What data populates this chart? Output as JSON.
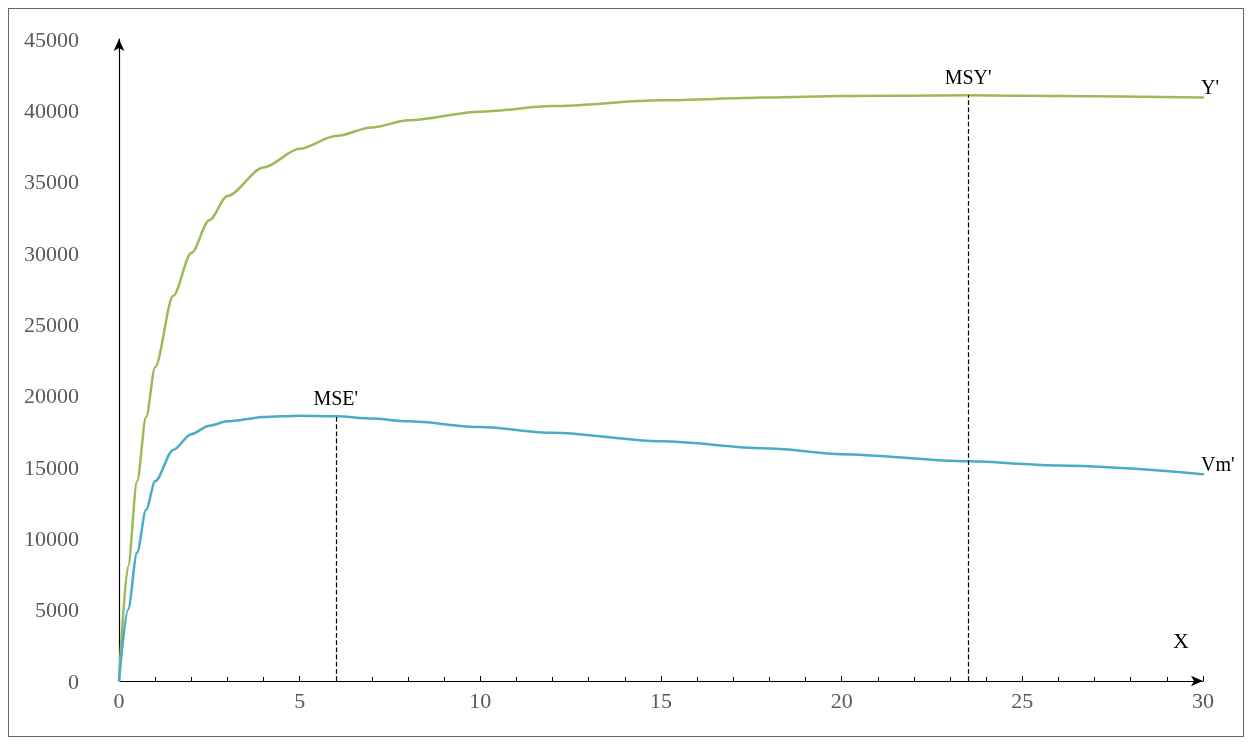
{
  "chart_data": {
    "type": "line",
    "xlabel": "X",
    "xlim": [
      0,
      30
    ],
    "xticks": [
      0,
      5,
      10,
      15,
      20,
      25,
      30
    ],
    "ylim": [
      0,
      45000
    ],
    "yticks": [
      0,
      5000,
      10000,
      15000,
      20000,
      25000,
      30000,
      35000,
      40000,
      45000
    ],
    "grid": false,
    "legend": false,
    "marker": "none",
    "line_style": "solid",
    "series": [
      {
        "name": "Y'",
        "color": "#9bbb59",
        "x": [
          0,
          0.25,
          0.5,
          0.75,
          1,
          1.5,
          2,
          2.5,
          3,
          4,
          5,
          6,
          7,
          8,
          10,
          12,
          15,
          18,
          20,
          23.5,
          26,
          30
        ],
        "values": [
          0,
          8000,
          14000,
          18500,
          22000,
          27000,
          30000,
          32300,
          34000,
          36000,
          37300,
          38200,
          38800,
          39300,
          39900,
          40300,
          40700,
          40900,
          41000,
          41050,
          41000,
          40900
        ]
      },
      {
        "name": "Vm'",
        "color": "#4bacc6",
        "x": [
          0,
          0.25,
          0.5,
          0.75,
          1,
          1.5,
          2,
          2.5,
          3,
          4,
          5,
          6,
          7,
          8,
          10,
          12,
          15,
          18,
          20,
          23.5,
          26,
          30
        ],
        "values": [
          0,
          5000,
          9000,
          12000,
          14000,
          16200,
          17300,
          17900,
          18200,
          18500,
          18600,
          18550,
          18400,
          18200,
          17800,
          17400,
          16800,
          16300,
          15900,
          15400,
          15100,
          14500
        ]
      }
    ],
    "ref_lines": [
      {
        "axis": "x",
        "value": 6,
        "label": "MSE'",
        "line_style": "dashed",
        "color": "#000000"
      },
      {
        "axis": "x",
        "value": 23.5,
        "label": "MSY'",
        "line_style": "dashed",
        "color": "#000000"
      }
    ]
  }
}
